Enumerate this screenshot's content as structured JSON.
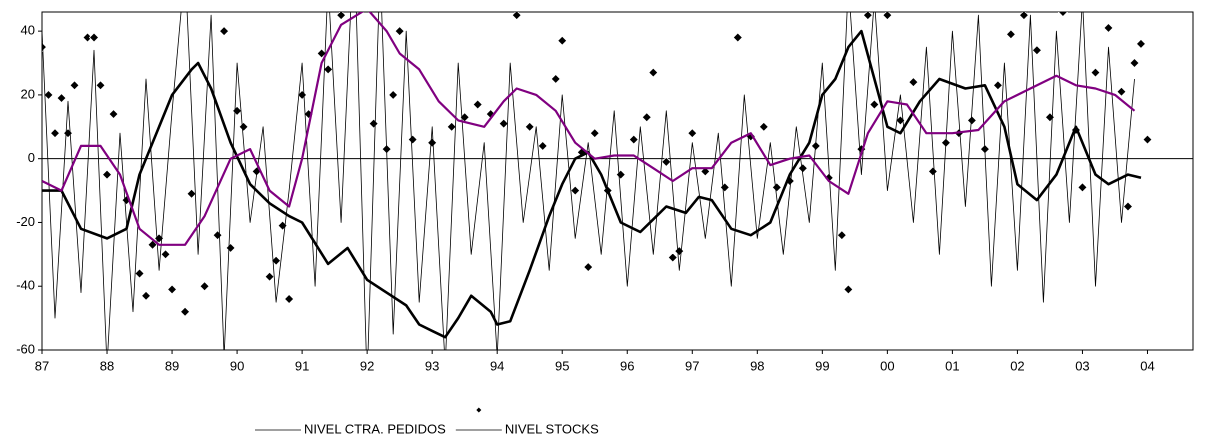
{
  "chart_data": {
    "type": "line",
    "xlim": [
      87,
      104.7
    ],
    "ylim": [
      -60,
      46
    ],
    "xticks": [
      87,
      88,
      89,
      90,
      91,
      92,
      93,
      94,
      95,
      96,
      97,
      98,
      99,
      {
        "value": 100,
        "label": "00"
      },
      {
        "value": 101,
        "label": "01"
      },
      {
        "value": 102,
        "label": "02"
      },
      {
        "value": 103,
        "label": "03"
      },
      {
        "value": 104,
        "label": "04"
      }
    ],
    "yticks": [
      -60,
      -40,
      -20,
      0,
      20,
      40
    ],
    "zero_line": true,
    "series": [
      {
        "name": "NIVEL CTRA. PEDIDOS",
        "kind": "line",
        "color": "#000000",
        "line_width": 0.8,
        "x": [
          87.0,
          87.2,
          87.4,
          87.6,
          87.8,
          88.0,
          88.2,
          88.4,
          88.6,
          88.8,
          89.0,
          89.2,
          89.4,
          89.6,
          89.8,
          90.0,
          90.2,
          90.4,
          90.6,
          90.8,
          91.0,
          91.2,
          91.4,
          91.6,
          91.8,
          92.0,
          92.2,
          92.4,
          92.6,
          92.8,
          93.0,
          93.2,
          93.4,
          93.6,
          93.8,
          94.0,
          94.2,
          94.4,
          94.6,
          94.8,
          95.0,
          95.2,
          95.4,
          95.6,
          95.8,
          96.0,
          96.2,
          96.4,
          96.6,
          96.8,
          97.0,
          97.2,
          97.4,
          97.6,
          97.8,
          98.0,
          98.2,
          98.4,
          98.6,
          98.8,
          99.0,
          99.2,
          99.4,
          99.6,
          99.8,
          100.0,
          100.2,
          100.4,
          100.6,
          100.8,
          101.0,
          101.2,
          101.4,
          101.6,
          101.8,
          102.0,
          102.2,
          102.4,
          102.6,
          102.8,
          103.0,
          103.2,
          103.4,
          103.6,
          103.8
        ],
        "values": [
          40,
          -50,
          18,
          -42,
          34,
          -65,
          8,
          -48,
          25,
          -35,
          15,
          60,
          -30,
          45,
          -62,
          30,
          -20,
          10,
          -45,
          -10,
          30,
          -40,
          55,
          -20,
          70,
          -70,
          60,
          -55,
          40,
          -45,
          10,
          -65,
          30,
          -30,
          5,
          -62,
          30,
          -20,
          10,
          -35,
          20,
          -25,
          5,
          -30,
          15,
          -40,
          10,
          -30,
          15,
          -35,
          5,
          -25,
          8,
          -40,
          20,
          -25,
          5,
          -30,
          10,
          -20,
          30,
          -35,
          55,
          -5,
          50,
          -10,
          20,
          -20,
          35,
          -30,
          40,
          -15,
          45,
          -40,
          30,
          -35,
          45,
          -45,
          40,
          -20,
          50,
          -40,
          35,
          -20,
          25
        ]
      },
      {
        "name": "NIVEL STOCKS",
        "kind": "scatter",
        "color": "#000000",
        "marker": "diamond",
        "x": [
          87.0,
          87.1,
          87.2,
          87.3,
          87.4,
          87.5,
          87.7,
          87.8,
          87.9,
          88.0,
          88.1,
          88.3,
          88.5,
          88.6,
          88.7,
          88.8,
          88.9,
          89.0,
          89.2,
          89.3,
          89.5,
          89.7,
          89.8,
          89.9,
          90.0,
          90.1,
          90.3,
          90.5,
          90.6,
          90.7,
          90.8,
          91.0,
          91.1,
          91.3,
          91.4,
          91.6,
          91.9,
          92.1,
          92.3,
          92.4,
          92.5,
          92.7,
          93.0,
          93.3,
          93.5,
          93.7,
          93.9,
          94.1,
          94.3,
          94.5,
          94.7,
          94.9,
          95.0,
          95.2,
          95.3,
          95.4,
          95.5,
          95.7,
          95.9,
          96.1,
          96.3,
          96.4,
          96.6,
          96.7,
          96.8,
          97.0,
          97.2,
          97.5,
          97.7,
          97.9,
          98.1,
          98.3,
          98.5,
          98.7,
          98.9,
          99.1,
          99.3,
          99.4,
          99.6,
          99.7,
          99.8,
          100.0,
          100.2,
          100.4,
          100.7,
          100.9,
          101.1,
          101.3,
          101.5,
          101.7,
          101.9,
          102.1,
          102.3,
          102.5,
          102.7,
          102.9,
          103.0,
          103.2,
          103.4,
          103.6,
          103.7,
          103.8,
          103.9,
          104.0
        ],
        "values": [
          35,
          20,
          8,
          19,
          8,
          23,
          38,
          38,
          23,
          -5,
          14,
          -13,
          -36,
          -43,
          -27,
          -25,
          -30,
          -41,
          -48,
          -11,
          -40,
          -24,
          40,
          -28,
          15,
          10,
          -4,
          -37,
          -32,
          -21,
          -44,
          20,
          14,
          33,
          28,
          45,
          48,
          11,
          3,
          20,
          40,
          6,
          5,
          10,
          13,
          17,
          14,
          11,
          45,
          10,
          4,
          25,
          37,
          -10,
          2,
          -34,
          8,
          -10,
          -5,
          6,
          13,
          27,
          -1,
          -31,
          -29,
          8,
          -4,
          -9,
          38,
          7,
          10,
          -9,
          -7,
          -3,
          4,
          -6,
          -24,
          -41,
          3,
          45,
          17,
          45,
          12,
          24,
          -4,
          5,
          8,
          12,
          3,
          23,
          39,
          45,
          34,
          13,
          46,
          9,
          -9,
          27,
          41,
          21,
          -15,
          30,
          36,
          6
        ]
      },
      {
        "kind": "line",
        "color": "#000000",
        "line_width": 2.6,
        "x": [
          87.0,
          87.3,
          87.6,
          88.0,
          88.3,
          88.5,
          88.8,
          89.0,
          89.3,
          89.4,
          89.6,
          89.9,
          90.2,
          90.5,
          90.8,
          91.0,
          91.4,
          91.7,
          92.0,
          92.3,
          92.6,
          92.8,
          93.0,
          93.2,
          93.4,
          93.6,
          93.9,
          94.0,
          94.2,
          94.5,
          94.8,
          95.0,
          95.2,
          95.4,
          95.6,
          95.9,
          96.2,
          96.4,
          96.6,
          96.9,
          97.1,
          97.3,
          97.6,
          97.9,
          98.2,
          98.5,
          98.8,
          99.0,
          99.2,
          99.4,
          99.6,
          99.8,
          100.0,
          100.2,
          100.5,
          100.8,
          101.2,
          101.5,
          101.8,
          102.0,
          102.3,
          102.6,
          102.9,
          103.2,
          103.4,
          103.7,
          103.9
        ],
        "values": [
          -10,
          -10,
          -22,
          -25,
          -22,
          -5,
          10,
          20,
          28,
          30,
          22,
          5,
          -8,
          -14,
          -18,
          -20,
          -33,
          -28,
          -38,
          -42,
          -46,
          -52,
          -54,
          -56,
          -50,
          -43,
          -48,
          -52,
          -51,
          -35,
          -18,
          -8,
          0,
          2,
          -5,
          -20,
          -23,
          -19,
          -15,
          -17,
          -12,
          -13,
          -22,
          -24,
          -20,
          -5,
          5,
          20,
          25,
          35,
          40,
          25,
          10,
          8,
          18,
          25,
          22,
          23,
          10,
          -8,
          -13,
          -5,
          10,
          -5,
          -8,
          -5,
          -6
        ]
      },
      {
        "kind": "line",
        "color": "#800080",
        "line_width": 2.2,
        "x": [
          87.0,
          87.3,
          87.6,
          87.9,
          88.2,
          88.5,
          88.8,
          89.2,
          89.5,
          89.9,
          90.2,
          90.5,
          90.8,
          91.0,
          91.3,
          91.6,
          92.0,
          92.3,
          92.5,
          92.8,
          93.1,
          93.4,
          93.8,
          94.1,
          94.3,
          94.6,
          94.9,
          95.2,
          95.5,
          95.8,
          96.1,
          96.4,
          96.7,
          97.0,
          97.3,
          97.6,
          97.9,
          98.2,
          98.5,
          98.8,
          99.1,
          99.4,
          99.7,
          100.0,
          100.3,
          100.6,
          101.0,
          101.4,
          101.8,
          102.2,
          102.6,
          102.9,
          103.2,
          103.5,
          103.8
        ],
        "values": [
          -7,
          -10,
          4,
          4,
          -5,
          -22,
          -27,
          -27,
          -18,
          0,
          3,
          -10,
          -15,
          0,
          30,
          42,
          47,
          40,
          33,
          28,
          18,
          12,
          10,
          18,
          22,
          20,
          15,
          5,
          0,
          1,
          1,
          -3,
          -7,
          -3,
          -3,
          5,
          8,
          -2,
          0,
          1,
          -7,
          -11,
          8,
          18,
          17,
          8,
          8,
          9,
          18,
          22,
          26,
          23,
          22,
          20,
          15
        ]
      }
    ]
  }
}
